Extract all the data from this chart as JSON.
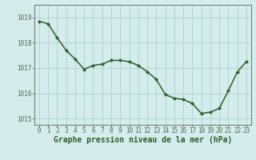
{
  "x": [
    0,
    1,
    2,
    3,
    4,
    5,
    6,
    7,
    8,
    9,
    10,
    11,
    12,
    13,
    14,
    15,
    16,
    17,
    18,
    19,
    20,
    21,
    22,
    23
  ],
  "y": [
    1018.85,
    1018.75,
    1018.2,
    1017.7,
    1017.35,
    1016.95,
    1017.1,
    1017.15,
    1017.3,
    1017.3,
    1017.25,
    1017.1,
    1016.85,
    1016.55,
    1015.95,
    1015.8,
    1015.75,
    1015.6,
    1015.2,
    1015.25,
    1015.4,
    1016.1,
    1016.85,
    1017.25
  ],
  "line_color": "#2d5e2d",
  "marker": "D",
  "marker_size": 2.2,
  "bg_color": "#d4ecec",
  "grid_color": "#a8cccc",
  "xlabel": "Graphe pression niveau de la mer (hPa)",
  "xlabel_fontsize": 7,
  "tick_fontsize": 5.5,
  "ylim": [
    1014.75,
    1019.5
  ],
  "yticks": [
    1015,
    1016,
    1017,
    1018,
    1019
  ],
  "xticks": [
    0,
    1,
    2,
    3,
    4,
    5,
    6,
    7,
    8,
    9,
    10,
    11,
    12,
    13,
    14,
    15,
    16,
    17,
    18,
    19,
    20,
    21,
    22,
    23
  ],
  "linewidth": 1.1,
  "spine_color": "#556655"
}
